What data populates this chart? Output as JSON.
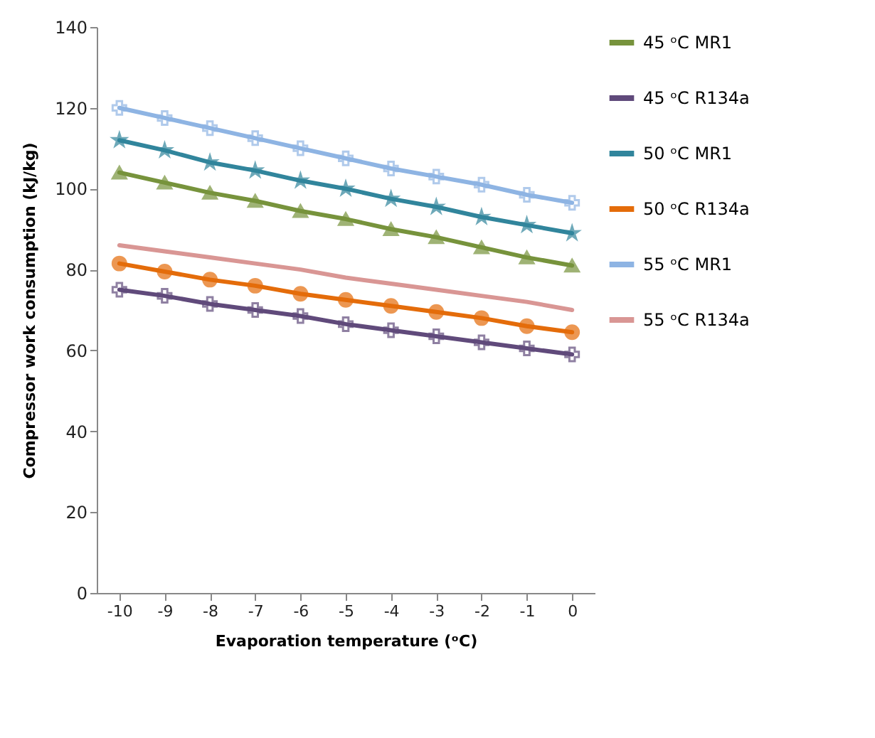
{
  "chart_data": {
    "type": "line",
    "xlabel": "Evaporation temperature (ᵒC)",
    "ylabel": "Compressor work consumption  (kJ/kg)",
    "categories": [
      "-10",
      "-9",
      "-8",
      "-7",
      "-6",
      "-5",
      "-4",
      "-3",
      "-2",
      "-1",
      "0"
    ],
    "series": [
      {
        "name": "45 ᵒC  MR1",
        "color": "#77933c",
        "marker": "triangle",
        "values": [
          104,
          101.5,
          99,
          97,
          94.5,
          92.5,
          90,
          88,
          85.5,
          83,
          81
        ]
      },
      {
        "name": "45 ᵒC R134a",
        "color": "#604a7b",
        "marker": "cross",
        "values": [
          75,
          73.5,
          71.5,
          70,
          68.5,
          66.5,
          65,
          63.5,
          62,
          60.5,
          59
        ]
      },
      {
        "name": "50 ᵒC  MR1",
        "color": "#31859c",
        "marker": "star",
        "values": [
          112,
          109.5,
          106.5,
          104.5,
          102,
          100,
          97.5,
          95.5,
          93,
          91,
          89
        ]
      },
      {
        "name": "50 ᵒC R134a",
        "color": "#e46c0a",
        "marker": "circle",
        "values": [
          81.5,
          79.5,
          77.5,
          76,
          74,
          72.5,
          71,
          69.5,
          68,
          66,
          64.5
        ]
      },
      {
        "name": "55 ᵒC  MR1",
        "color": "#8eb4e3",
        "marker": "cross",
        "values": [
          120,
          117.5,
          115,
          112.5,
          110,
          107.5,
          105,
          103,
          101,
          98.5,
          96.5
        ]
      },
      {
        "name": "55 ᵒC R134a",
        "color": "#d99694",
        "marker": "none",
        "values": [
          86,
          84.5,
          83,
          81.5,
          80,
          78,
          76.5,
          75,
          73.5,
          72,
          70
        ]
      }
    ],
    "ylim": [
      0,
      140
    ],
    "yticks": [
      0,
      20,
      40,
      60,
      80,
      100,
      120,
      140
    ],
    "grid": false,
    "legend": "right"
  }
}
